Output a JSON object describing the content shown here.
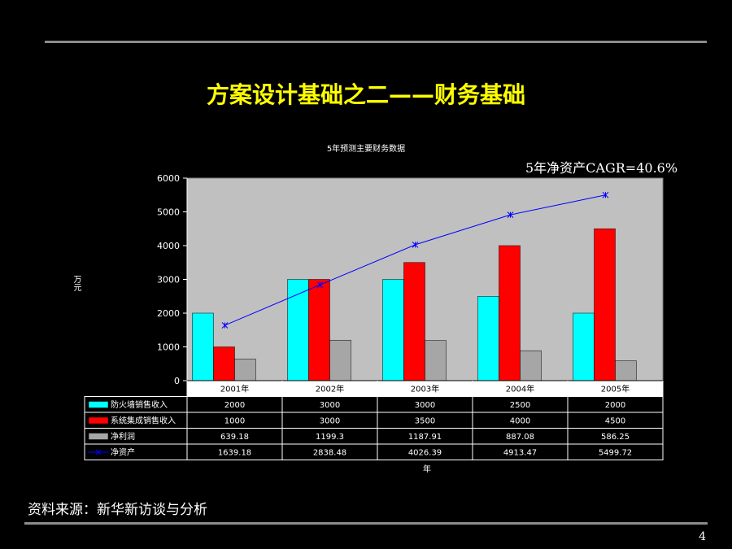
{
  "slide": {
    "title": "方案设计基础之二——财务基础",
    "source": "资料来源：新华新访谈与分析",
    "page_number": "4",
    "annotation": "5年净资产CAGR=40.6%"
  },
  "chart_data": {
    "type": "bar",
    "title": "5年预测主要财务数据",
    "ylabel": "万元",
    "xlabel": "年",
    "ylim": [
      0,
      6000
    ],
    "yticks": [
      "0",
      "1000",
      "2000",
      "3000",
      "4000",
      "5000",
      "6000"
    ],
    "categories": [
      "2001年",
      "2002年",
      "2003年",
      "2004年",
      "2005年"
    ],
    "series": [
      {
        "name": "防火墙销售收入",
        "kind": "bar",
        "color": "#00ffff",
        "values": [
          2000,
          3000,
          3000,
          2500,
          2000
        ],
        "labels": [
          "2000",
          "3000",
          "3000",
          "2500",
          "2000"
        ]
      },
      {
        "name": "系统集成销售收入",
        "kind": "bar",
        "color": "#ff0000",
        "values": [
          1000,
          3000,
          3500,
          4000,
          4500
        ],
        "labels": [
          "1000",
          "3000",
          "3500",
          "4000",
          "4500"
        ]
      },
      {
        "name": "净利润",
        "kind": "bar",
        "color": "#a6a6a6",
        "values": [
          639.18,
          1199.3,
          1187.91,
          887.08,
          586.25
        ],
        "labels": [
          "639.18",
          "1199.3",
          "1187.91",
          "887.08",
          "586.25"
        ]
      },
      {
        "name": "净资产",
        "kind": "line",
        "color": "#0000ff",
        "values": [
          1639.18,
          2838.48,
          4026.39,
          4913.47,
          5499.72
        ],
        "labels": [
          "1639.18",
          "2838.48",
          "4026.39",
          "4913.47",
          "5499.72"
        ]
      }
    ],
    "plot_background": "#c0c0c0",
    "legend": "data-table-below"
  }
}
